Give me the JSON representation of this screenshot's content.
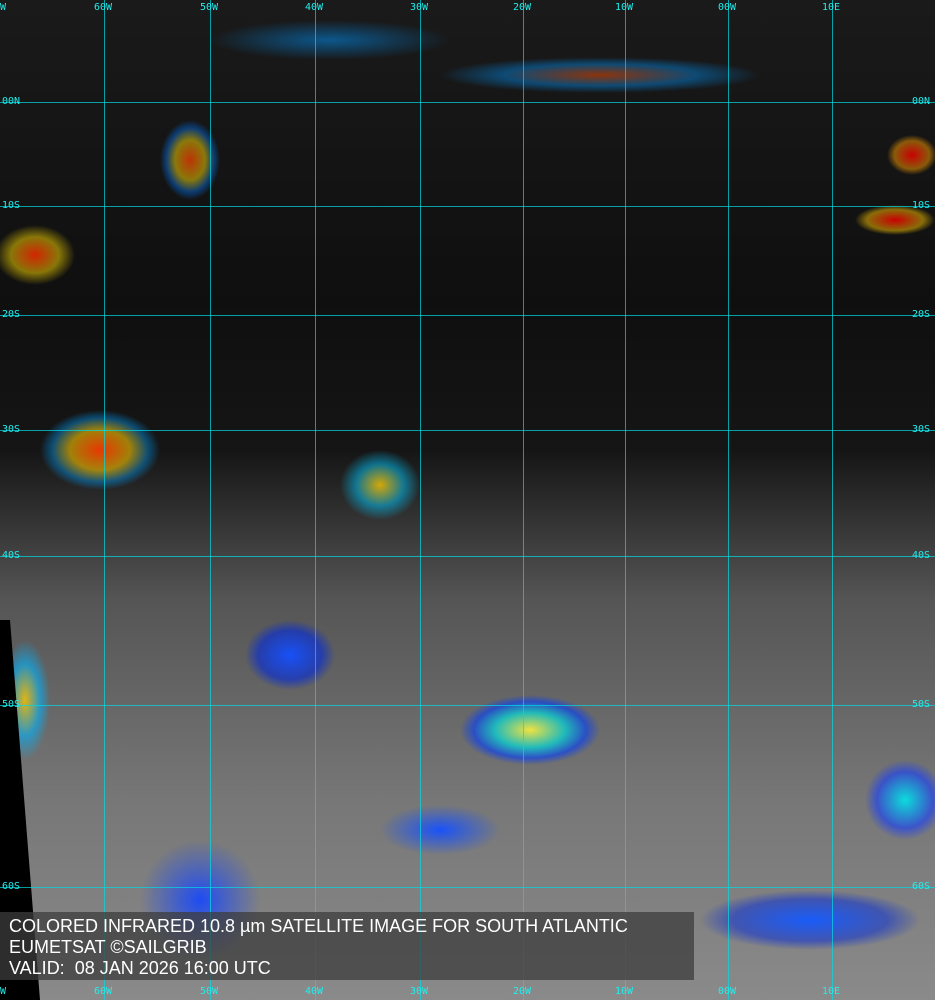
{
  "caption": {
    "line1": "COLORED INFRARED 10.8 µm SATELLITE IMAGE FOR SOUTH ATLANTIC",
    "line2": "EUMETSAT ©SAILGRIB",
    "line3": "VALID:  08 JAN 2026 16:00 UTC"
  },
  "longitude_labels": [
    "W",
    "60W",
    "50W",
    "40W",
    "30W",
    "20W",
    "10W",
    "00W",
    "10E"
  ],
  "latitude_labels": [
    "00N",
    "10S",
    "20S",
    "30S",
    "40S",
    "50S",
    "60S"
  ],
  "grid_color": "#22dddd"
}
